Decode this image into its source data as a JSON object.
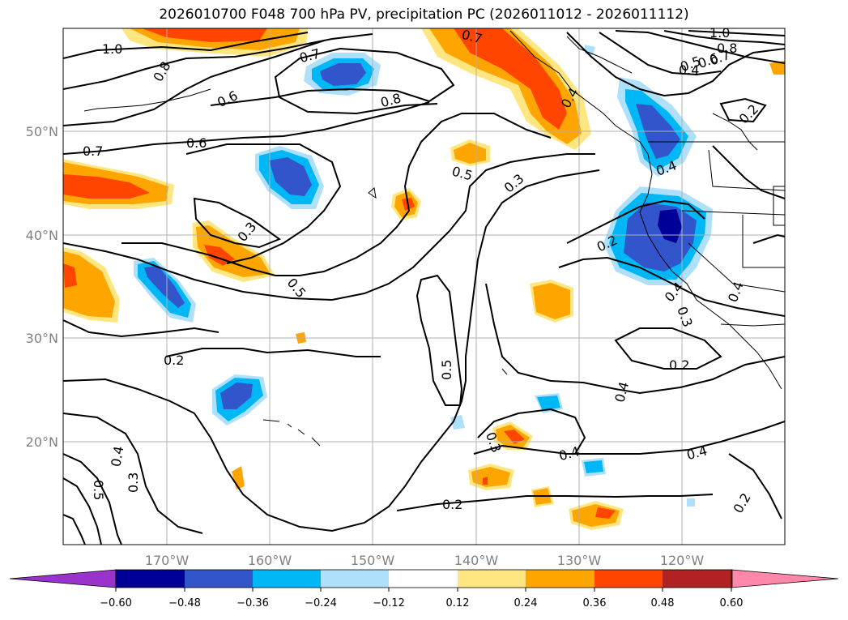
{
  "title": "2026010700 F048 700 hPa PV, precipitation PC (2026011012 - 2026011112)",
  "colors": {
    "frame": "#000000",
    "grid": "#b0b0b0",
    "tick_label": "#808080",
    "coast": "#000000",
    "contour": "#000000"
  },
  "axes": {
    "lon_labels": [
      "170°W",
      "160°W",
      "150°W",
      "140°W",
      "130°W",
      "120°W"
    ],
    "lat_labels": [
      "50°N",
      "40°N",
      "30°N",
      "20°N"
    ]
  },
  "colorbar": {
    "tick_labels": [
      "−0.60",
      "−0.48",
      "−0.36",
      "−0.24",
      "−0.12",
      "0.12",
      "0.24",
      "0.36",
      "0.48",
      "0.60"
    ],
    "colors": [
      "#9933cc",
      "#000099",
      "#3355cc",
      "#00b7f5",
      "#aee0fb",
      "#ffffff",
      "#ffe680",
      "#ffa500",
      "#ff4500",
      "#b22222",
      "#ff88aa"
    ]
  },
  "contour_labels": {
    "c1": "1.0",
    "c2": "0.8",
    "c3": "0.6",
    "c4": "0.7",
    "c5": "0.7",
    "c6": "0.8",
    "c7": "0.6",
    "c8": "0.5",
    "c9": "0.3",
    "c10": "0.3",
    "c11": "0.5",
    "c12": "0.5",
    "c13": "0.2",
    "c14": "0.2",
    "c15": "0.4",
    "c16": "0.2",
    "c17": "0.4",
    "c18": "0.3",
    "c19": "0.4",
    "c20": "0.3",
    "c21": "0.4",
    "c22": "0.2",
    "c23": "0.4",
    "c24": "0.5",
    "c25": "0.3",
    "c26": "0.4",
    "c27": "0.2",
    "c28": "0.7",
    "c29": "0.4",
    "c30": "0.4",
    "c31": "1.0",
    "c32": "0.8",
    "c33": "0.7",
    "c34": "0.6",
    "c35": "0.5",
    "c36": "0.4",
    "c37": "0.2"
  }
}
